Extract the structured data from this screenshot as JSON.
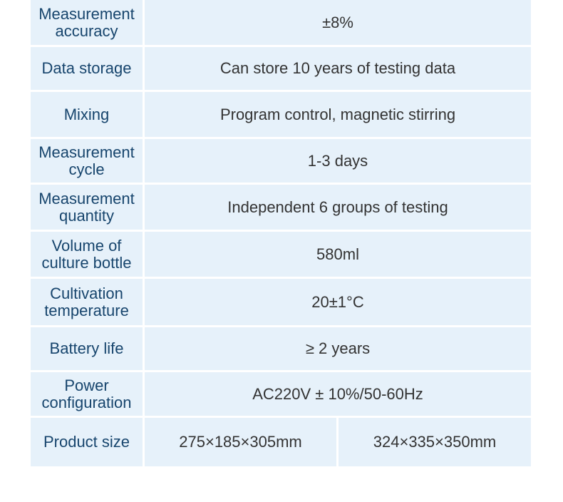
{
  "specs": [
    {
      "label": "Measurement accuracy",
      "value": "±8%"
    },
    {
      "label": "Data storage",
      "value": "Can store 10 years of testing data"
    },
    {
      "label": "Mixing",
      "value": "Program control, magnetic stirring"
    },
    {
      "label": "Measurement cycle",
      "value": "1-3 days"
    },
    {
      "label": "Measurement quantity",
      "value": "Independent 6 groups of testing"
    },
    {
      "label": "Volume of culture bottle",
      "value": "580ml"
    },
    {
      "label": "Cultivation temperature",
      "value": "20±1°C"
    },
    {
      "label": "Battery life",
      "value": "≥ 2 years"
    },
    {
      "label": "Power configuration",
      "value": "AC220V ± 10%/50-60Hz"
    }
  ],
  "product_size": {
    "label": "Product size",
    "values": [
      "275×185×305mm",
      "324×335×350mm"
    ]
  },
  "colors": {
    "cell_background": "#e6f1fa",
    "label_text": "#17456d",
    "value_text": "#333333"
  }
}
